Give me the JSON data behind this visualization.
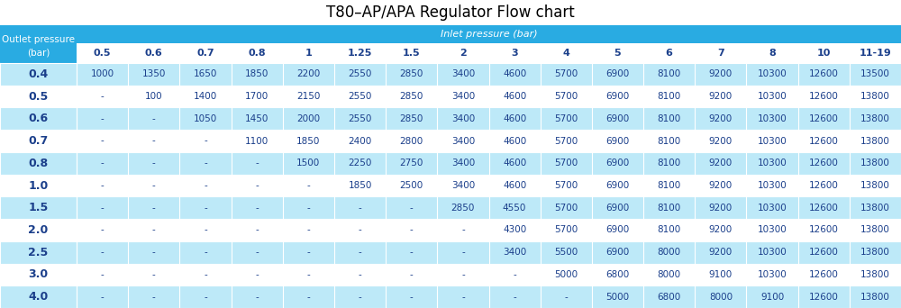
{
  "title": "T80–AP/APA Regulator Flow chart",
  "inlet_header": "Inlet pressure (bar)",
  "outlet_header_line1": "Outlet pressure",
  "outlet_header_line2": "(bar)",
  "inlet_cols": [
    "0.5",
    "0.6",
    "0.7",
    "0.8",
    "1",
    "1.25",
    "1.5",
    "2",
    "3",
    "4",
    "5",
    "6",
    "7",
    "8",
    "10",
    "11-19"
  ],
  "outlet_rows": [
    "0.4",
    "0.5",
    "0.6",
    "0.7",
    "0.8",
    "1.0",
    "1.5",
    "2.0",
    "2.5",
    "3.0",
    "4.0"
  ],
  "table_data": [
    [
      "1000",
      "1350",
      "1650",
      "1850",
      "2200",
      "2550",
      "2850",
      "3400",
      "4600",
      "5700",
      "6900",
      "8100",
      "9200",
      "10300",
      "12600",
      "13500"
    ],
    [
      "-",
      "100",
      "1400",
      "1700",
      "2150",
      "2550",
      "2850",
      "3400",
      "4600",
      "5700",
      "6900",
      "8100",
      "9200",
      "10300",
      "12600",
      "13800"
    ],
    [
      "-",
      "-",
      "1050",
      "1450",
      "2000",
      "2550",
      "2850",
      "3400",
      "4600",
      "5700",
      "6900",
      "8100",
      "9200",
      "10300",
      "12600",
      "13800"
    ],
    [
      "-",
      "-",
      "-",
      "1100",
      "1850",
      "2400",
      "2800",
      "3400",
      "4600",
      "5700",
      "6900",
      "8100",
      "9200",
      "10300",
      "12600",
      "13800"
    ],
    [
      "-",
      "-",
      "-",
      "-",
      "1500",
      "2250",
      "2750",
      "3400",
      "4600",
      "5700",
      "6900",
      "8100",
      "9200",
      "10300",
      "12600",
      "13800"
    ],
    [
      "-",
      "-",
      "-",
      "-",
      "-",
      "1850",
      "2500",
      "3400",
      "4600",
      "5700",
      "6900",
      "8100",
      "9200",
      "10300",
      "12600",
      "13800"
    ],
    [
      "-",
      "-",
      "-",
      "-",
      "-",
      "-",
      "-",
      "2850",
      "4550",
      "5700",
      "6900",
      "8100",
      "9200",
      "10300",
      "12600",
      "13800"
    ],
    [
      "-",
      "-",
      "-",
      "-",
      "-",
      "-",
      "-",
      "-",
      "4300",
      "5700",
      "6900",
      "8100",
      "9200",
      "10300",
      "12600",
      "13800"
    ],
    [
      "-",
      "-",
      "-",
      "-",
      "-",
      "-",
      "-",
      "-",
      "3400",
      "5500",
      "6900",
      "8000",
      "9200",
      "10300",
      "12600",
      "13800"
    ],
    [
      "-",
      "-",
      "-",
      "-",
      "-",
      "-",
      "-",
      "-",
      "-",
      "5000",
      "6800",
      "8000",
      "9100",
      "10300",
      "12600",
      "13800"
    ],
    [
      "-",
      "-",
      "-",
      "-",
      "-",
      "-",
      "-",
      "-",
      "-",
      "-",
      "5000",
      "6800",
      "8000",
      "9100",
      "12600",
      "13800"
    ]
  ],
  "color_header_blue": "#29ABE2",
  "color_row_even": "#FFFFFF",
  "color_row_odd": "#BDE9F8",
  "color_outlet_even": "#BDE9F8",
  "color_outlet_odd": "#FFFFFF",
  "color_data_dark": "#1B3F8B",
  "color_outlet_label": "#1B3F8B",
  "color_header_text": "#FFFFFF",
  "color_col_header_text": "#1B3F8B",
  "title_fontsize": 12,
  "inlet_header_fontsize": 8,
  "col_header_fontsize": 8,
  "data_fontsize": 7.5,
  "outlet_fontsize": 9
}
